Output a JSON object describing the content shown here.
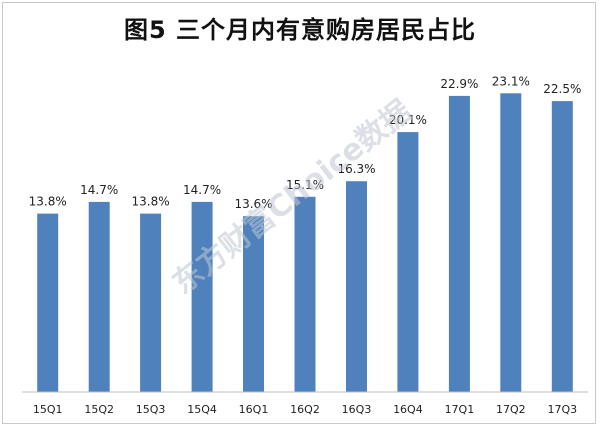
{
  "chart_data": {
    "type": "bar",
    "title": "图5 三个月内有意购房居民占比",
    "categories": [
      "15Q1",
      "15Q2",
      "15Q3",
      "15Q4",
      "16Q1",
      "16Q2",
      "16Q3",
      "16Q4",
      "17Q1",
      "17Q2",
      "17Q3"
    ],
    "values": [
      13.8,
      14.7,
      13.8,
      14.7,
      13.6,
      15.1,
      16.3,
      20.1,
      22.9,
      23.1,
      22.5
    ],
    "value_labels": [
      "13.8%",
      "14.7%",
      "13.8%",
      "14.7%",
      "13.6%",
      "15.1%",
      "16.3%",
      "20.1%",
      "22.9%",
      "23.1%",
      "22.5%"
    ],
    "bar_color": "#4f81bd",
    "ylim": [
      0,
      25
    ],
    "grid": false,
    "legend": "none"
  },
  "watermark": "东方财富Choice数据"
}
